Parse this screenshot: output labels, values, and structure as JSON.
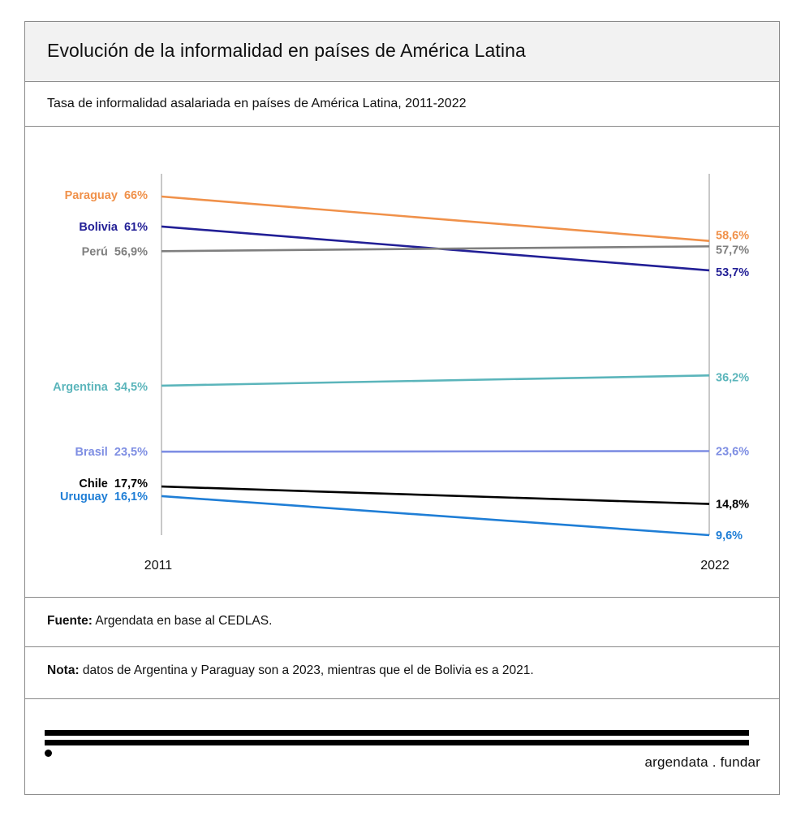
{
  "header": {
    "title": "Evolución de la informalidad en países de América Latina",
    "subtitle": "Tasa de informalidad asalariada en países de América Latina, 2011-2022"
  },
  "footer": {
    "source_label": "Fuente:",
    "source_text": " Argendata en base al CEDLAS.",
    "note_label": "Nota:",
    "note_text": " datos de Argentina y Paraguay son a 2023, mientras que el de Bolivia es a 2021.",
    "brand": "argendata . fundar"
  },
  "chart_data": {
    "type": "line",
    "title": "Evolución de la informalidad en países de América Latina",
    "subtitle": "Tasa de informalidad asalariada en países de América Latina, 2011-2022",
    "x": [
      "2011",
      "2022"
    ],
    "xlabel": "",
    "ylabel": "",
    "unit": "%",
    "ylim": [
      9.6,
      66
    ],
    "grid": false,
    "legend": "inline-labels",
    "series": [
      {
        "name": "Paraguay",
        "values": [
          66,
          58.6
        ],
        "labels": [
          "66%",
          "58,6%"
        ],
        "color": "#f0914a"
      },
      {
        "name": "Bolivia",
        "values": [
          61,
          53.7
        ],
        "labels": [
          "61%",
          "53,7%"
        ],
        "color": "#221f96"
      },
      {
        "name": "Perú",
        "values": [
          56.9,
          57.7
        ],
        "labels": [
          "56,9%",
          "57,7%"
        ],
        "color": "#7f7f7f"
      },
      {
        "name": "Argentina",
        "values": [
          34.5,
          36.2
        ],
        "labels": [
          "34,5%",
          "36,2%"
        ],
        "color": "#5bb5bb"
      },
      {
        "name": "Brasil",
        "values": [
          23.5,
          23.6
        ],
        "labels": [
          "23,5%",
          "23,6%"
        ],
        "color": "#7e8ee3"
      },
      {
        "name": "Chile",
        "values": [
          17.7,
          14.8
        ],
        "labels": [
          "17,7%",
          "14,8%"
        ],
        "color": "#000000"
      },
      {
        "name": "Uruguay",
        "values": [
          16.1,
          9.6
        ],
        "labels": [
          "16,1%",
          "9,6%"
        ],
        "color": "#1f7ed6"
      }
    ]
  }
}
